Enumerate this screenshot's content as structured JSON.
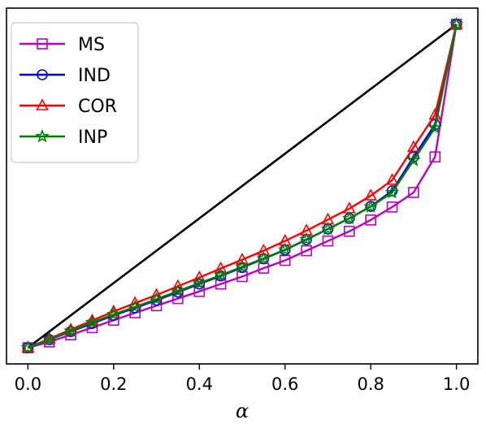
{
  "chart_data": {
    "type": "line",
    "title": "",
    "xlabel": "α",
    "ylabel": "",
    "xlim": [
      -0.05,
      1.05
    ],
    "ylim": [
      -0.05,
      1.05
    ],
    "xticks": [
      0.0,
      0.2,
      0.4,
      0.6,
      0.8,
      1.0
    ],
    "xtick_labels": [
      "0.0",
      "0.2",
      "0.4",
      "0.6",
      "0.8",
      "1.0"
    ],
    "yticks_visible": false,
    "grid": false,
    "legend": {
      "placement": "top-left"
    },
    "x": [
      0.0,
      0.05,
      0.1,
      0.15,
      0.2,
      0.25,
      0.3,
      0.35,
      0.4,
      0.45,
      0.5,
      0.55,
      0.6,
      0.65,
      0.7,
      0.75,
      0.8,
      0.85,
      0.9,
      0.95,
      1.0
    ],
    "reference_line": {
      "x": [
        0.0,
        1.0
      ],
      "y": [
        0.0,
        1.0
      ],
      "color": "#000000"
    },
    "series": [
      {
        "name": "MS",
        "color": "#bf00bf",
        "marker": "square",
        "values": [
          0.0,
          0.018,
          0.04,
          0.062,
          0.085,
          0.108,
          0.13,
          0.152,
          0.174,
          0.197,
          0.22,
          0.246,
          0.27,
          0.3,
          0.33,
          0.36,
          0.395,
          0.435,
          0.48,
          0.59,
          1.0
        ]
      },
      {
        "name": "IND",
        "color": "#0000ff",
        "marker": "circle",
        "values": [
          0.0,
          0.025,
          0.05,
          0.075,
          0.1,
          0.123,
          0.147,
          0.172,
          0.197,
          0.222,
          0.248,
          0.275,
          0.302,
          0.334,
          0.367,
          0.4,
          0.437,
          0.485,
          0.59,
          0.69,
          1.0
        ]
      },
      {
        "name": "COR",
        "color": "#ff0000",
        "marker": "triangle",
        "values": [
          0.0,
          0.028,
          0.056,
          0.084,
          0.112,
          0.138,
          0.163,
          0.19,
          0.217,
          0.245,
          0.272,
          0.3,
          0.33,
          0.362,
          0.396,
          0.43,
          0.47,
          0.518,
          0.62,
          0.72,
          1.0
        ]
      },
      {
        "name": "INP",
        "color": "#008000",
        "marker": "star",
        "values": [
          0.0,
          0.025,
          0.052,
          0.078,
          0.103,
          0.126,
          0.15,
          0.175,
          0.2,
          0.224,
          0.25,
          0.276,
          0.303,
          0.335,
          0.367,
          0.4,
          0.436,
          0.48,
          0.58,
          0.68,
          1.0
        ]
      }
    ]
  }
}
